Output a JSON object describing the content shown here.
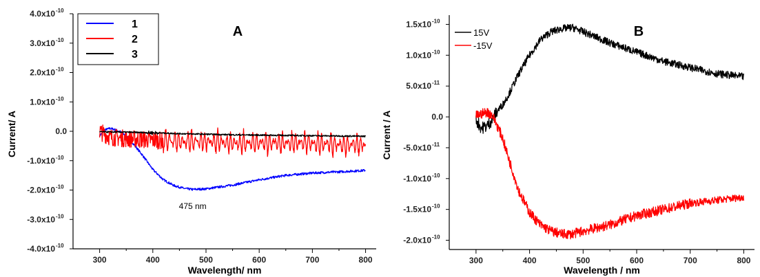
{
  "chart_data": [
    {
      "type": "line",
      "panel_label": "A",
      "xlabel": "Wavelength/ nm",
      "ylabel": "Current/ A",
      "xlim": [
        250,
        820
      ],
      "ylim": [
        -4e-10,
        4e-10
      ],
      "x_ticks": [
        300,
        400,
        500,
        600,
        700,
        800
      ],
      "x_tick_labels": [
        "300",
        "400",
        "500",
        "600",
        "700",
        "800"
      ],
      "y_ticks": [
        4e-10,
        3e-10,
        2e-10,
        1e-10,
        0,
        -1e-10,
        -2e-10,
        -3e-10,
        -4e-10
      ],
      "y_tick_labels": [
        "4.0x10",
        "3.0x10",
        "2.0x10",
        "1.0x10",
        "0.0",
        "-1.0x10",
        "-2.0x10",
        "-3.0x10",
        "-4.0x10"
      ],
      "y_tick_exponents": [
        "-10",
        "-10",
        "-10",
        "-10",
        "",
        "-10",
        "-10",
        "-10",
        "-10"
      ],
      "legend_position": "top-left",
      "annotations": [
        {
          "text": "475 nm",
          "x": 475,
          "y": -2.5e-10
        }
      ],
      "series": [
        {
          "name": "1",
          "color": "#0000ff",
          "x": [
            300,
            310,
            320,
            330,
            340,
            350,
            360,
            380,
            400,
            420,
            440,
            460,
            475,
            500,
            550,
            600,
            650,
            700,
            750,
            800
          ],
          "y": [
            -1.5e-11,
            5e-12,
            1e-11,
            5e-12,
            -3e-12,
            -1.5e-11,
            -3.5e-11,
            -8e-11,
            -1.3e-10,
            -1.65e-10,
            -1.85e-10,
            -1.95e-10,
            -1.98e-10,
            -1.96e-10,
            -1.83e-10,
            -1.65e-10,
            -1.5e-10,
            -1.42e-10,
            -1.38e-10,
            -1.33e-10
          ]
        },
        {
          "name": "2",
          "color": "#ff0000",
          "x": [
            300,
            320,
            350,
            400,
            450,
            500,
            550,
            600,
            650,
            700,
            750,
            800
          ],
          "y": [
            0.0,
            -2e-11,
            -2.5e-11,
            -3e-11,
            -3.5e-11,
            -3.5e-11,
            -4e-11,
            -4e-11,
            -4e-11,
            -4e-11,
            -4.5e-11,
            -4.5e-11
          ]
        },
        {
          "name": "3",
          "color": "#000000",
          "x": [
            300,
            350,
            400,
            450,
            500,
            550,
            600,
            650,
            700,
            750,
            800
          ],
          "y": [
            -2e-12,
            -3e-12,
            -5e-12,
            -8e-12,
            -1e-11,
            -1.2e-11,
            -1.3e-11,
            -1.4e-11,
            -1.5e-11,
            -1.6e-11,
            -1.7e-11
          ]
        }
      ]
    },
    {
      "type": "line",
      "panel_label": "B",
      "xlabel": "Wavelength / nm",
      "ylabel": "Current / A",
      "xlim": [
        250,
        820
      ],
      "ylim": [
        -2.15e-10,
        1.65e-10
      ],
      "x_ticks": [
        300,
        400,
        500,
        600,
        700,
        800
      ],
      "x_tick_labels": [
        "300",
        "400",
        "500",
        "600",
        "700",
        "800"
      ],
      "y_ticks": [
        1.5e-10,
        1e-10,
        5e-11,
        0,
        -5e-11,
        -1e-10,
        -1.5e-10,
        -2e-10
      ],
      "y_tick_labels": [
        "1.5x10",
        "1.0x10",
        "5.0x10",
        "0.0",
        "-5.0x10",
        "-1.0x10",
        "-1.5x10",
        "-2.0x10"
      ],
      "y_tick_exponents": [
        "-10",
        "-10",
        "-11",
        "",
        "-11",
        "-10",
        "-10",
        "-10"
      ],
      "legend_position": "top-left",
      "series": [
        {
          "name": "15V",
          "color": "#000000",
          "x": [
            300,
            310,
            320,
            330,
            340,
            350,
            360,
            380,
            400,
            420,
            440,
            460,
            480,
            500,
            550,
            600,
            650,
            700,
            750,
            800
          ],
          "y": [
            -5e-12,
            -1.8e-11,
            -1.5e-11,
            -5e-12,
            1e-11,
            2e-11,
            3.5e-11,
            7e-11,
            1e-10,
            1.25e-10,
            1.38e-10,
            1.43e-10,
            1.45e-10,
            1.38e-10,
            1.2e-10,
            1.05e-10,
            9e-11,
            8e-11,
            7e-11,
            6.5e-11
          ]
        },
        {
          "name": "-15V",
          "color": "#ff0000",
          "x": [
            300,
            310,
            320,
            330,
            340,
            350,
            360,
            380,
            400,
            420,
            440,
            460,
            480,
            500,
            550,
            600,
            650,
            700,
            750,
            800
          ],
          "y": [
            2e-12,
            5e-12,
            8e-12,
            3e-12,
            -1.5e-11,
            -3.5e-11,
            -6.5e-11,
            -1.2e-10,
            -1.55e-10,
            -1.75e-10,
            -1.85e-10,
            -1.9e-10,
            -1.9e-10,
            -1.85e-10,
            -1.75e-10,
            -1.6e-10,
            -1.5e-10,
            -1.4e-10,
            -1.35e-10,
            -1.3e-10
          ]
        }
      ]
    }
  ]
}
